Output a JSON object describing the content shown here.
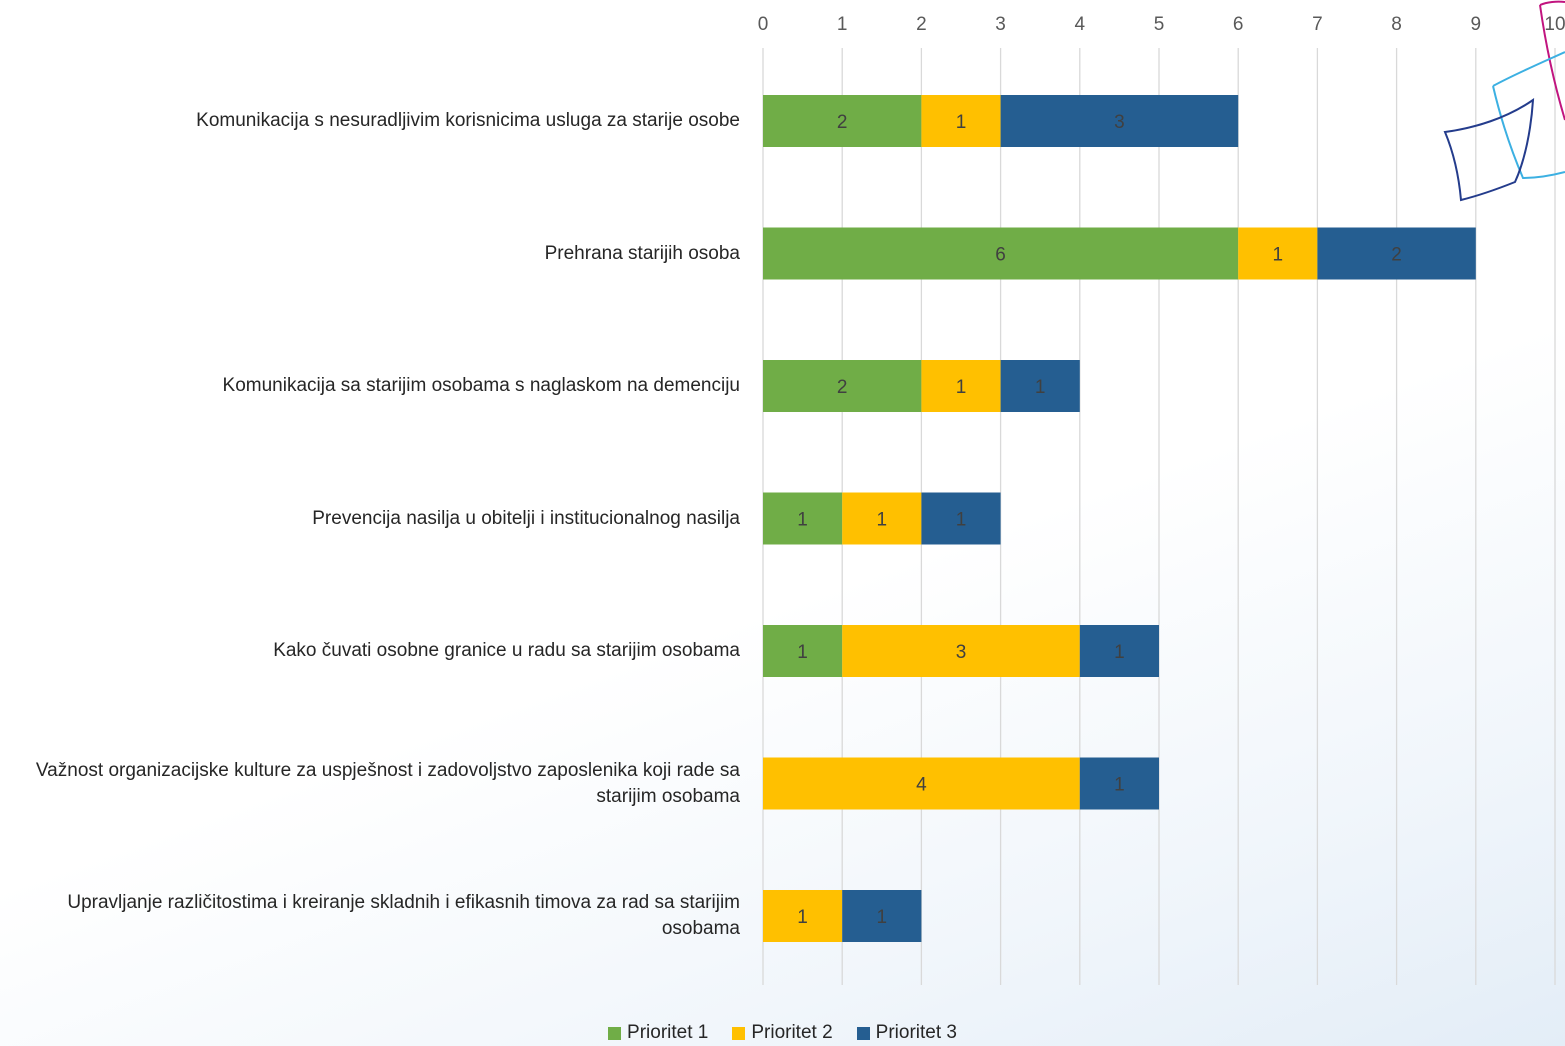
{
  "chart_data": {
    "type": "bar",
    "orientation": "horizontal",
    "stacked": true,
    "categories": [
      "Komunikacija s nesuradljivim korisnicima usluga za starije osobe",
      "Prehrana starijih osoba",
      "Komunikacija sa starijim osobama s naglaskom na demenciju",
      "Prevencija nasilja u obitelji i institucionalnog nasilja",
      "Kako čuvati osobne granice u radu sa starijim osobama",
      "Važnost organizacijske kulture za uspješnost i zadovoljstvo zaposlenika koji rade sa starijim osobama",
      "Upravljanje različitostima i kreiranje skladnih i efikasnih timova za rad sa starijim osobama"
    ],
    "series": [
      {
        "name": "Prioritet 1",
        "color": "#70ad47",
        "values": [
          2,
          6,
          2,
          1,
          1,
          0,
          0
        ]
      },
      {
        "name": "Prioritet 2",
        "color": "#ffc000",
        "values": [
          1,
          1,
          1,
          1,
          3,
          4,
          1
        ]
      },
      {
        "name": "Prioritet 3",
        "color": "#255e91",
        "values": [
          3,
          2,
          1,
          1,
          1,
          1,
          1
        ]
      }
    ],
    "xlim": [
      0,
      10
    ],
    "x_ticks": [
      "0",
      "1",
      "2",
      "3",
      "4",
      "5",
      "6",
      "7",
      "8",
      "9",
      "10"
    ],
    "x_axis_position": "top",
    "grid": true,
    "legend_position": "bottom",
    "data_labels": true,
    "title": "",
    "xlabel": "",
    "ylabel": ""
  },
  "decoration": {
    "icon": "abstract-outline-logo-icon",
    "colors": [
      "#c1147f",
      "#3cb0e2",
      "#243c8c"
    ]
  }
}
